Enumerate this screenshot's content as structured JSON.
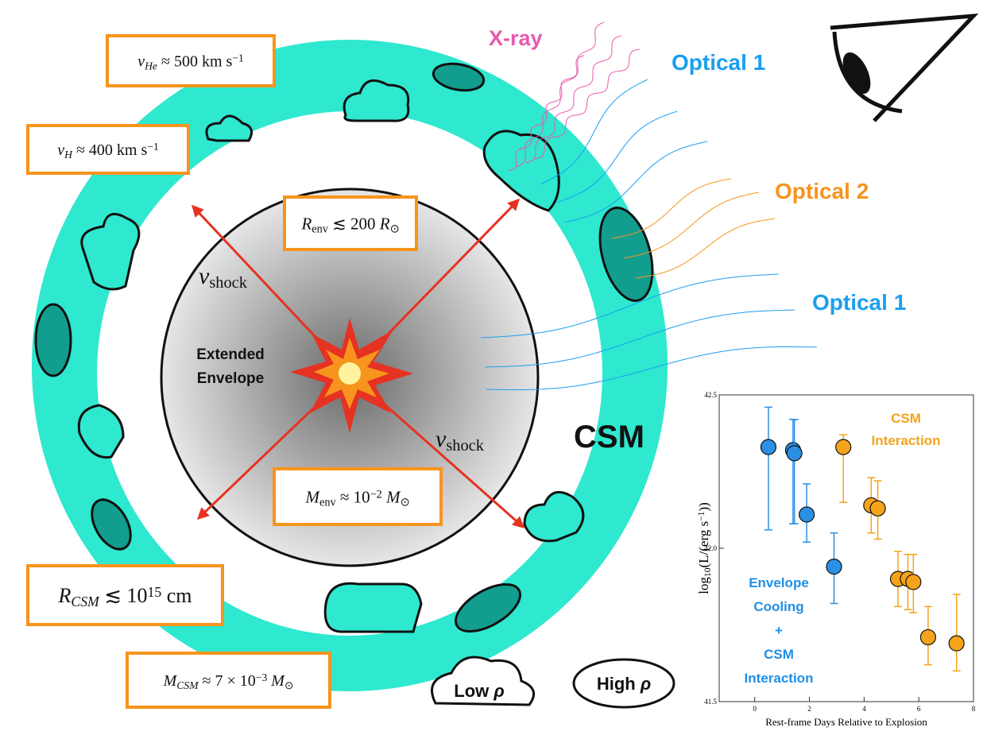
{
  "labels": {
    "xray": "X-ray",
    "optical_1_top": "Optical 1",
    "optical_2": "Optical 2",
    "optical_1_bottom": "Optical 1",
    "envelope": [
      "Extended",
      "Envelope"
    ],
    "csm": "CSM"
  },
  "shock_labels": [
    {
      "segments": [
        {
          "text": "v",
          "style": "italic"
        },
        {
          "text": "shock",
          "style": "sub"
        }
      ]
    },
    {
      "segments": [
        {
          "text": "v",
          "style": "italic"
        },
        {
          "text": "shock",
          "style": "sub"
        }
      ]
    }
  ],
  "boxes": [
    {
      "segments": [
        {
          "text": "v",
          "style": "italic"
        },
        {
          "text": "He",
          "style": "sub-italic"
        },
        {
          "text": " ≈ 500 km s",
          "style": "plain"
        },
        {
          "text": "−1",
          "style": "sup"
        }
      ]
    },
    {
      "segments": [
        {
          "text": "v",
          "style": "italic"
        },
        {
          "text": "H",
          "style": "sub-italic"
        },
        {
          "text": " ≈ 400 km s",
          "style": "plain"
        },
        {
          "text": "−1",
          "style": "sup"
        }
      ]
    },
    {
      "segments": [
        {
          "text": "R",
          "style": "italic"
        },
        {
          "text": "env",
          "style": "sub"
        },
        {
          "text": " ≲ 200 ",
          "style": "plain"
        },
        {
          "text": "R",
          "style": "italic"
        },
        {
          "text": "⊙",
          "style": "sub"
        }
      ]
    },
    {
      "segments": [
        {
          "text": "M",
          "style": "italic"
        },
        {
          "text": "env",
          "style": "sub"
        },
        {
          "text": " ≈ 10",
          "style": "plain"
        },
        {
          "text": "−2",
          "style": "sup"
        },
        {
          "text": " M",
          "style": "italic"
        },
        {
          "text": "⊙",
          "style": "sub"
        }
      ]
    },
    {
      "segments": [
        {
          "text": "R",
          "style": "italic"
        },
        {
          "text": "CSM",
          "style": "sub-italic"
        },
        {
          "text": " ≲ 10",
          "style": "plain"
        },
        {
          "text": "15",
          "style": "sup"
        },
        {
          "text": " cm",
          "style": "plain"
        }
      ]
    },
    {
      "segments": [
        {
          "text": "M",
          "style": "italic"
        },
        {
          "text": "CSM",
          "style": "sub-italic"
        },
        {
          "text": " ≈ 7 × 10",
          "style": "plain"
        },
        {
          "text": "−3",
          "style": "sup"
        },
        {
          "text": " M",
          "style": "italic"
        },
        {
          "text": "⊙",
          "style": "sub"
        }
      ]
    }
  ],
  "legend": [
    {
      "segments": [
        {
          "text": "Low ",
          "style": "plain"
        },
        {
          "text": "ρ",
          "style": "italic"
        }
      ]
    },
    {
      "segments": [
        {
          "text": "High ",
          "style": "plain"
        },
        {
          "text": "ρ",
          "style": "italic"
        }
      ]
    }
  ],
  "chart_data": {
    "type": "scatter",
    "x_label": "Rest-frame Days Relative to Explosion",
    "y_label": [
      {
        "text": "log",
        "style": "plain"
      },
      {
        "text": "10",
        "style": "sub"
      },
      {
        "text": "(L/(erg s",
        "style": "plain"
      },
      {
        "text": "−1",
        "style": "sup"
      },
      {
        "text": "))",
        "style": "plain"
      }
    ],
    "annotations": [
      {
        "lines": [
          "CSM",
          "Interaction"
        ],
        "color": "#f5a31a"
      },
      {
        "lines": [
          "Envelope",
          "Cooling",
          "+",
          "CSM",
          "Interaction"
        ],
        "color": "#1f8fe5"
      }
    ],
    "xlim": [
      -1.3,
      8
    ],
    "xticks": [
      0,
      2,
      4,
      6,
      8
    ],
    "ylim": [
      41.5,
      42.5
    ],
    "yticks": [
      41.5,
      {
        "value": 42,
        "label": "42.0"
      },
      42.5
    ],
    "series": [
      {
        "color": "#2b8fe3",
        "x": [
          0.5,
          1.4,
          1.45,
          1.9,
          2.9
        ],
        "values": [
          42.33,
          42.32,
          42.31,
          42.11,
          41.94
        ],
        "err_low": [
          0.27,
          0.24,
          0.23,
          0.09,
          0.12
        ],
        "err_high": [
          0.13,
          0.1,
          0.11,
          0.1,
          0.11
        ]
      },
      {
        "color": "#f5a31a",
        "x": [
          3.24,
          4.26,
          4.5,
          5.24,
          5.6,
          5.8,
          6.34,
          7.38
        ],
        "values": [
          42.33,
          42.14,
          42.13,
          41.9,
          41.9,
          41.89,
          41.71,
          41.69
        ],
        "err_low": [
          0.18,
          0.09,
          0.1,
          0.09,
          0.1,
          0.1,
          0.09,
          0.09
        ],
        "err_high": [
          0.04,
          0.09,
          0.09,
          0.09,
          0.08,
          0.09,
          0.1,
          0.16
        ]
      }
    ]
  }
}
